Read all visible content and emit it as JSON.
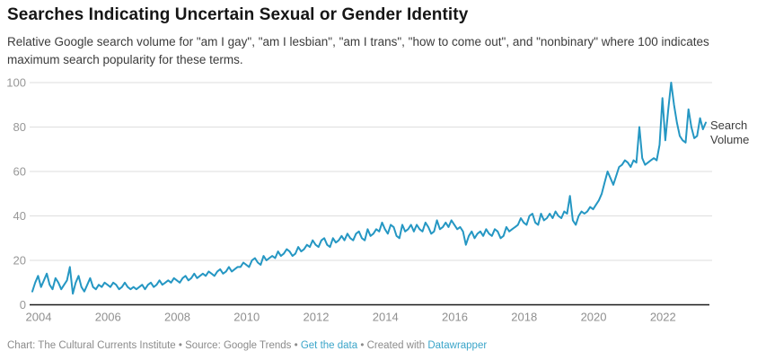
{
  "header": {
    "title": "Searches Indicating Uncertain Sexual or Gender Identity",
    "description": "Relative Google search volume for \"am I gay\", \"am I lesbian\", \"am I trans\", \"how to come out\", and \"nonbinary\" where 100 indicates maximum search popularity for these terms."
  },
  "chart_data": {
    "type": "line",
    "title": "Searches Indicating Uncertain Sexual or Gender Identity",
    "xlabel": "",
    "ylabel": "",
    "x_start": "2004-01",
    "x_end": "2023-06",
    "x_interval": "monthly",
    "x_ticks": [
      2004,
      2006,
      2008,
      2010,
      2012,
      2014,
      2016,
      2018,
      2020,
      2022
    ],
    "y_ticks": [
      0,
      20,
      40,
      60,
      80,
      100
    ],
    "ylim": [
      0,
      100
    ],
    "grid": "horizontal",
    "legend_position": "end-of-line",
    "series": [
      {
        "name": "Search Volume",
        "color": "#2597c3",
        "values": [
          6,
          10,
          13,
          8,
          11,
          14,
          9,
          7,
          12,
          10,
          7,
          9,
          11,
          17,
          5,
          10,
          13,
          8,
          6,
          9,
          12,
          8,
          7,
          9,
          8,
          10,
          9,
          8,
          10,
          9,
          7,
          8,
          10,
          8,
          7,
          8,
          7,
          8,
          9,
          7,
          9,
          10,
          8,
          9,
          11,
          9,
          10,
          11,
          10,
          12,
          11,
          10,
          12,
          13,
          11,
          12,
          14,
          12,
          13,
          14,
          13,
          15,
          14,
          13,
          15,
          16,
          14,
          15,
          17,
          15,
          16,
          17,
          17,
          19,
          18,
          17,
          20,
          21,
          19,
          18,
          22,
          20,
          21,
          22,
          21,
          24,
          22,
          23,
          25,
          24,
          22,
          23,
          26,
          24,
          25,
          27,
          26,
          29,
          27,
          26,
          29,
          30,
          27,
          26,
          30,
          28,
          29,
          31,
          29,
          32,
          30,
          29,
          32,
          33,
          30,
          29,
          34,
          31,
          32,
          34,
          33,
          37,
          34,
          32,
          36,
          35,
          31,
          30,
          36,
          33,
          34,
          36,
          33,
          36,
          34,
          33,
          37,
          35,
          32,
          33,
          38,
          34,
          35,
          37,
          35,
          38,
          36,
          34,
          35,
          33,
          27,
          31,
          33,
          30,
          32,
          33,
          31,
          34,
          32,
          31,
          34,
          33,
          30,
          31,
          35,
          33,
          34,
          35,
          36,
          39,
          37,
          36,
          40,
          41,
          37,
          36,
          41,
          38,
          39,
          41,
          39,
          42,
          40,
          39,
          42,
          41,
          49,
          38,
          36,
          40,
          42,
          41,
          42,
          44,
          43,
          45,
          47,
          50,
          55,
          60,
          57,
          54,
          58,
          62,
          63,
          65,
          64,
          62,
          65,
          64,
          80,
          66,
          63,
          64,
          65,
          66,
          65,
          72,
          93,
          74,
          88,
          100,
          90,
          82,
          76,
          74,
          73,
          88,
          80,
          75,
          76,
          84,
          79,
          82
        ]
      }
    ]
  },
  "footer": {
    "chart_credit": "Chart: The Cultural Currents Institute",
    "separator": "•",
    "source": "Source: Google Trends",
    "get_data_link": "Get the data",
    "created_with": "Created with",
    "datawrapper_link": "Datawrapper"
  },
  "colors": {
    "line": "#2597c3",
    "grid": "#dedede",
    "baseline": "#1a1a1a",
    "link": "#3ba5c9"
  }
}
